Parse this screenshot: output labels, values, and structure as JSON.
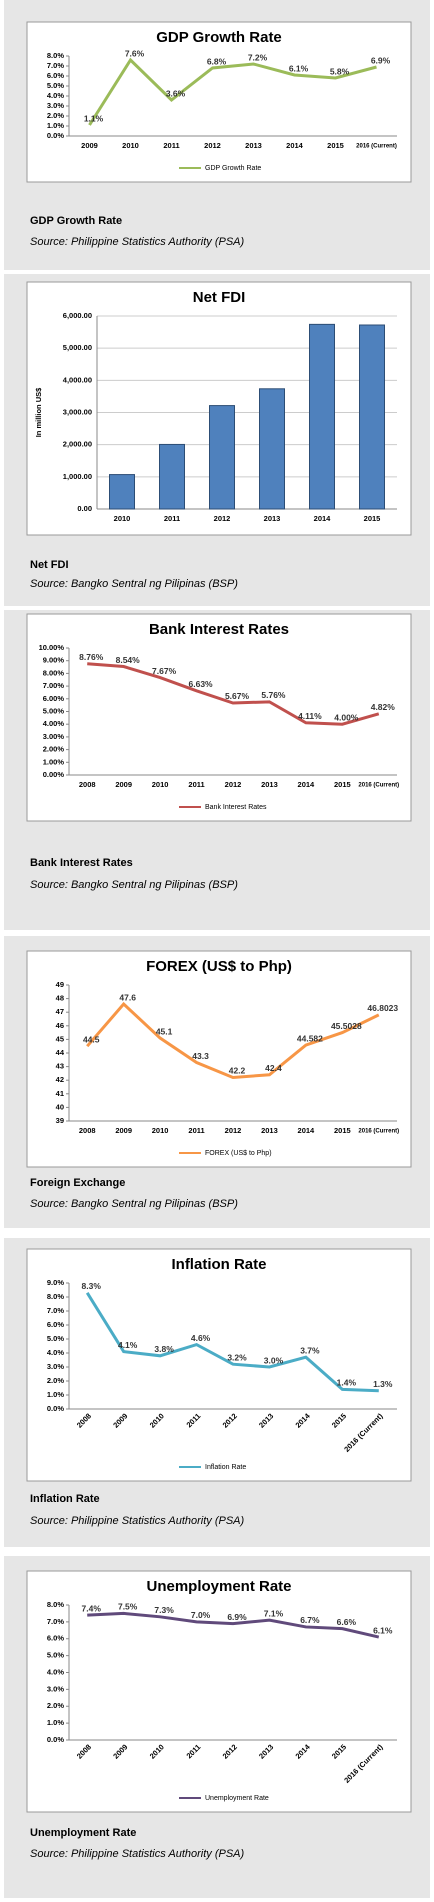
{
  "chart_data": [
    {
      "type": "line",
      "title": "GDP Growth Rate",
      "caption": "GDP Growth Rate",
      "source": "Source: Philippine Statistics Authority (PSA)",
      "categories": [
        "2009",
        "2010",
        "2011",
        "2012",
        "2013",
        "2014",
        "2015",
        "2016 (Current)"
      ],
      "series": [
        {
          "name": "GDP Growth Rate",
          "color": "#9bbb59",
          "values": [
            1.1,
            7.6,
            3.6,
            6.8,
            7.2,
            6.1,
            5.8,
            6.9
          ],
          "value_labels": [
            "1.1%",
            "7.6%",
            "3.6%",
            "6.8%",
            "7.2%",
            "6.1%",
            "5.8%",
            "6.9%"
          ]
        }
      ],
      "ylim": [
        0,
        8
      ],
      "yticks": [
        {
          "value": 0,
          "label": "0.0%"
        },
        {
          "value": 1,
          "label": "1.0%"
        },
        {
          "value": 2,
          "label": "2.0%"
        },
        {
          "value": 3,
          "label": "3.0%"
        },
        {
          "value": 4,
          "label": "4.0%"
        },
        {
          "value": 5,
          "label": "5.0%"
        },
        {
          "value": 6,
          "label": "6.0%"
        },
        {
          "value": 7,
          "label": "7.0%"
        },
        {
          "value": 8,
          "label": "8.0%"
        }
      ],
      "legend": "bottom",
      "rotate_labels": false
    },
    {
      "type": "bar",
      "title": "Net FDI",
      "caption": "Net FDI",
      "source": "Source: Bangko Sentral ng Pilipinas (BSP)",
      "y_label": "In million US$",
      "categories": [
        "2010",
        "2011",
        "2012",
        "2013",
        "2014",
        "2015"
      ],
      "values": [
        1070,
        2007,
        3215,
        3737,
        5740,
        5720
      ],
      "color": "#4f81bd",
      "ylim": [
        0,
        6000
      ],
      "yticks": [
        {
          "value": 0,
          "label": "0.00"
        },
        {
          "value": 1000,
          "label": "1,000.00"
        },
        {
          "value": 2000,
          "label": "2,000.00"
        },
        {
          "value": 3000,
          "label": "3,000.00"
        },
        {
          "value": 4000,
          "label": "4,000.00"
        },
        {
          "value": 5000,
          "label": "5,000.00"
        },
        {
          "value": 6000,
          "label": "6,000.00"
        }
      ],
      "grid": true,
      "rotate_labels": false
    },
    {
      "type": "line",
      "title": "Bank Interest Rates",
      "caption": "Bank Interest Rates",
      "source": "Source: Bangko Sentral ng Pilipinas (BSP)",
      "categories": [
        "2008",
        "2009",
        "2010",
        "2011",
        "2012",
        "2013",
        "2014",
        "2015",
        "2016 (Current)"
      ],
      "series": [
        {
          "name": "Bank Interest Rates",
          "color": "#c0504d",
          "values": [
            8.76,
            8.54,
            7.67,
            6.63,
            5.67,
            5.76,
            4.11,
            4.0,
            4.82
          ],
          "value_labels": [
            "8.76%",
            "8.54%",
            "7.67%",
            "6.63%",
            "5.67%",
            "5.76%",
            "4.11%",
            "4.00%",
            "4.82%"
          ]
        }
      ],
      "ylim": [
        0,
        10
      ],
      "yticks": [
        {
          "value": 0,
          "label": "0.00%"
        },
        {
          "value": 1,
          "label": "1.00%"
        },
        {
          "value": 2,
          "label": "2.00%"
        },
        {
          "value": 3,
          "label": "3.00%"
        },
        {
          "value": 4,
          "label": "4.00%"
        },
        {
          "value": 5,
          "label": "5.00%"
        },
        {
          "value": 6,
          "label": "6.00%"
        },
        {
          "value": 7,
          "label": "7.00%"
        },
        {
          "value": 8,
          "label": "8.00%"
        },
        {
          "value": 9,
          "label": "9.00%"
        },
        {
          "value": 10,
          "label": "10.00%"
        }
      ],
      "legend": "bottom",
      "rotate_labels": false
    },
    {
      "type": "line",
      "title": "FOREX (US$ to Php)",
      "caption": "Foreign Exchange",
      "source": "Source: Bangko Sentral ng Pilipinas (BSP)",
      "categories": [
        "2008",
        "2009",
        "2010",
        "2011",
        "2012",
        "2013",
        "2014",
        "2015",
        "2016 (Current)"
      ],
      "series": [
        {
          "name": "FOREX (US$ to Php)",
          "color": "#f79646",
          "values": [
            44.5,
            47.6,
            45.1,
            43.3,
            42.2,
            42.4,
            44.582,
            45.5028,
            46.8023
          ]
        }
      ],
      "ylim": [
        39,
        49
      ],
      "yticks": [
        39,
        40,
        41,
        42,
        43,
        44,
        45,
        46,
        47,
        48,
        49
      ],
      "legend": "bottom",
      "rotate_labels": false
    },
    {
      "type": "line",
      "title": "Inflation Rate",
      "caption": "Inflation Rate",
      "source": "Source: Philippine Statistics Authority (PSA)",
      "categories": [
        "2008",
        "2009",
        "2010",
        "2011",
        "2012",
        "2013",
        "2014",
        "2015",
        "2016 (Current)"
      ],
      "series": [
        {
          "name": "Inflation Rate",
          "color": "#4bacc6",
          "values": [
            8.3,
            4.1,
            3.8,
            4.6,
            3.2,
            3.0,
            3.7,
            1.4,
            1.3
          ],
          "value_labels": [
            "8.3%",
            "4.1%",
            "3.8%",
            "4.6%",
            "3.2%",
            "3.0%",
            "3.7%",
            "1.4%",
            "1.3%"
          ]
        }
      ],
      "ylim": [
        0,
        9
      ],
      "yticks": [
        {
          "value": 0,
          "label": "0.0%"
        },
        {
          "value": 1,
          "label": "1.0%"
        },
        {
          "value": 2,
          "label": "2.0%"
        },
        {
          "value": 3,
          "label": "3.0%"
        },
        {
          "value": 4,
          "label": "4.0%"
        },
        {
          "value": 5,
          "label": "5.0%"
        },
        {
          "value": 6,
          "label": "6.0%"
        },
        {
          "value": 7,
          "label": "7.0%"
        },
        {
          "value": 8,
          "label": "8.0%"
        },
        {
          "value": 9,
          "label": "9.0%"
        }
      ],
      "legend": "bottom",
      "rotate_labels": true
    },
    {
      "type": "line",
      "title": "Unemployment Rate",
      "caption": "Unemployment Rate",
      "source": "Source: Philippine Statistics Authority (PSA)",
      "categories": [
        "2008",
        "2009",
        "2010",
        "2011",
        "2012",
        "2013",
        "2014",
        "2015",
        "2016 (Current)"
      ],
      "series": [
        {
          "name": "Unemployment Rate",
          "color": "#604a7b",
          "values": [
            7.4,
            7.5,
            7.3,
            7.0,
            6.9,
            7.1,
            6.7,
            6.6,
            6.1
          ],
          "value_labels": [
            "7.4%",
            "7.5%",
            "7.3%",
            "7.0%",
            "6.9%",
            "7.1%",
            "6.7%",
            "6.6%",
            "6.1%"
          ]
        }
      ],
      "ylim": [
        0,
        8
      ],
      "yticks": [
        {
          "value": 0,
          "label": "0.0%"
        },
        {
          "value": 1,
          "label": "1.0%"
        },
        {
          "value": 2,
          "label": "2.0%"
        },
        {
          "value": 3,
          "label": "3.0%"
        },
        {
          "value": 4,
          "label": "4.0%"
        },
        {
          "value": 5,
          "label": "5.0%"
        },
        {
          "value": 6,
          "label": "6.0%"
        },
        {
          "value": 7,
          "label": "7.0%"
        },
        {
          "value": 8,
          "label": "8.0%"
        }
      ],
      "legend": "bottom",
      "rotate_labels": true
    }
  ]
}
